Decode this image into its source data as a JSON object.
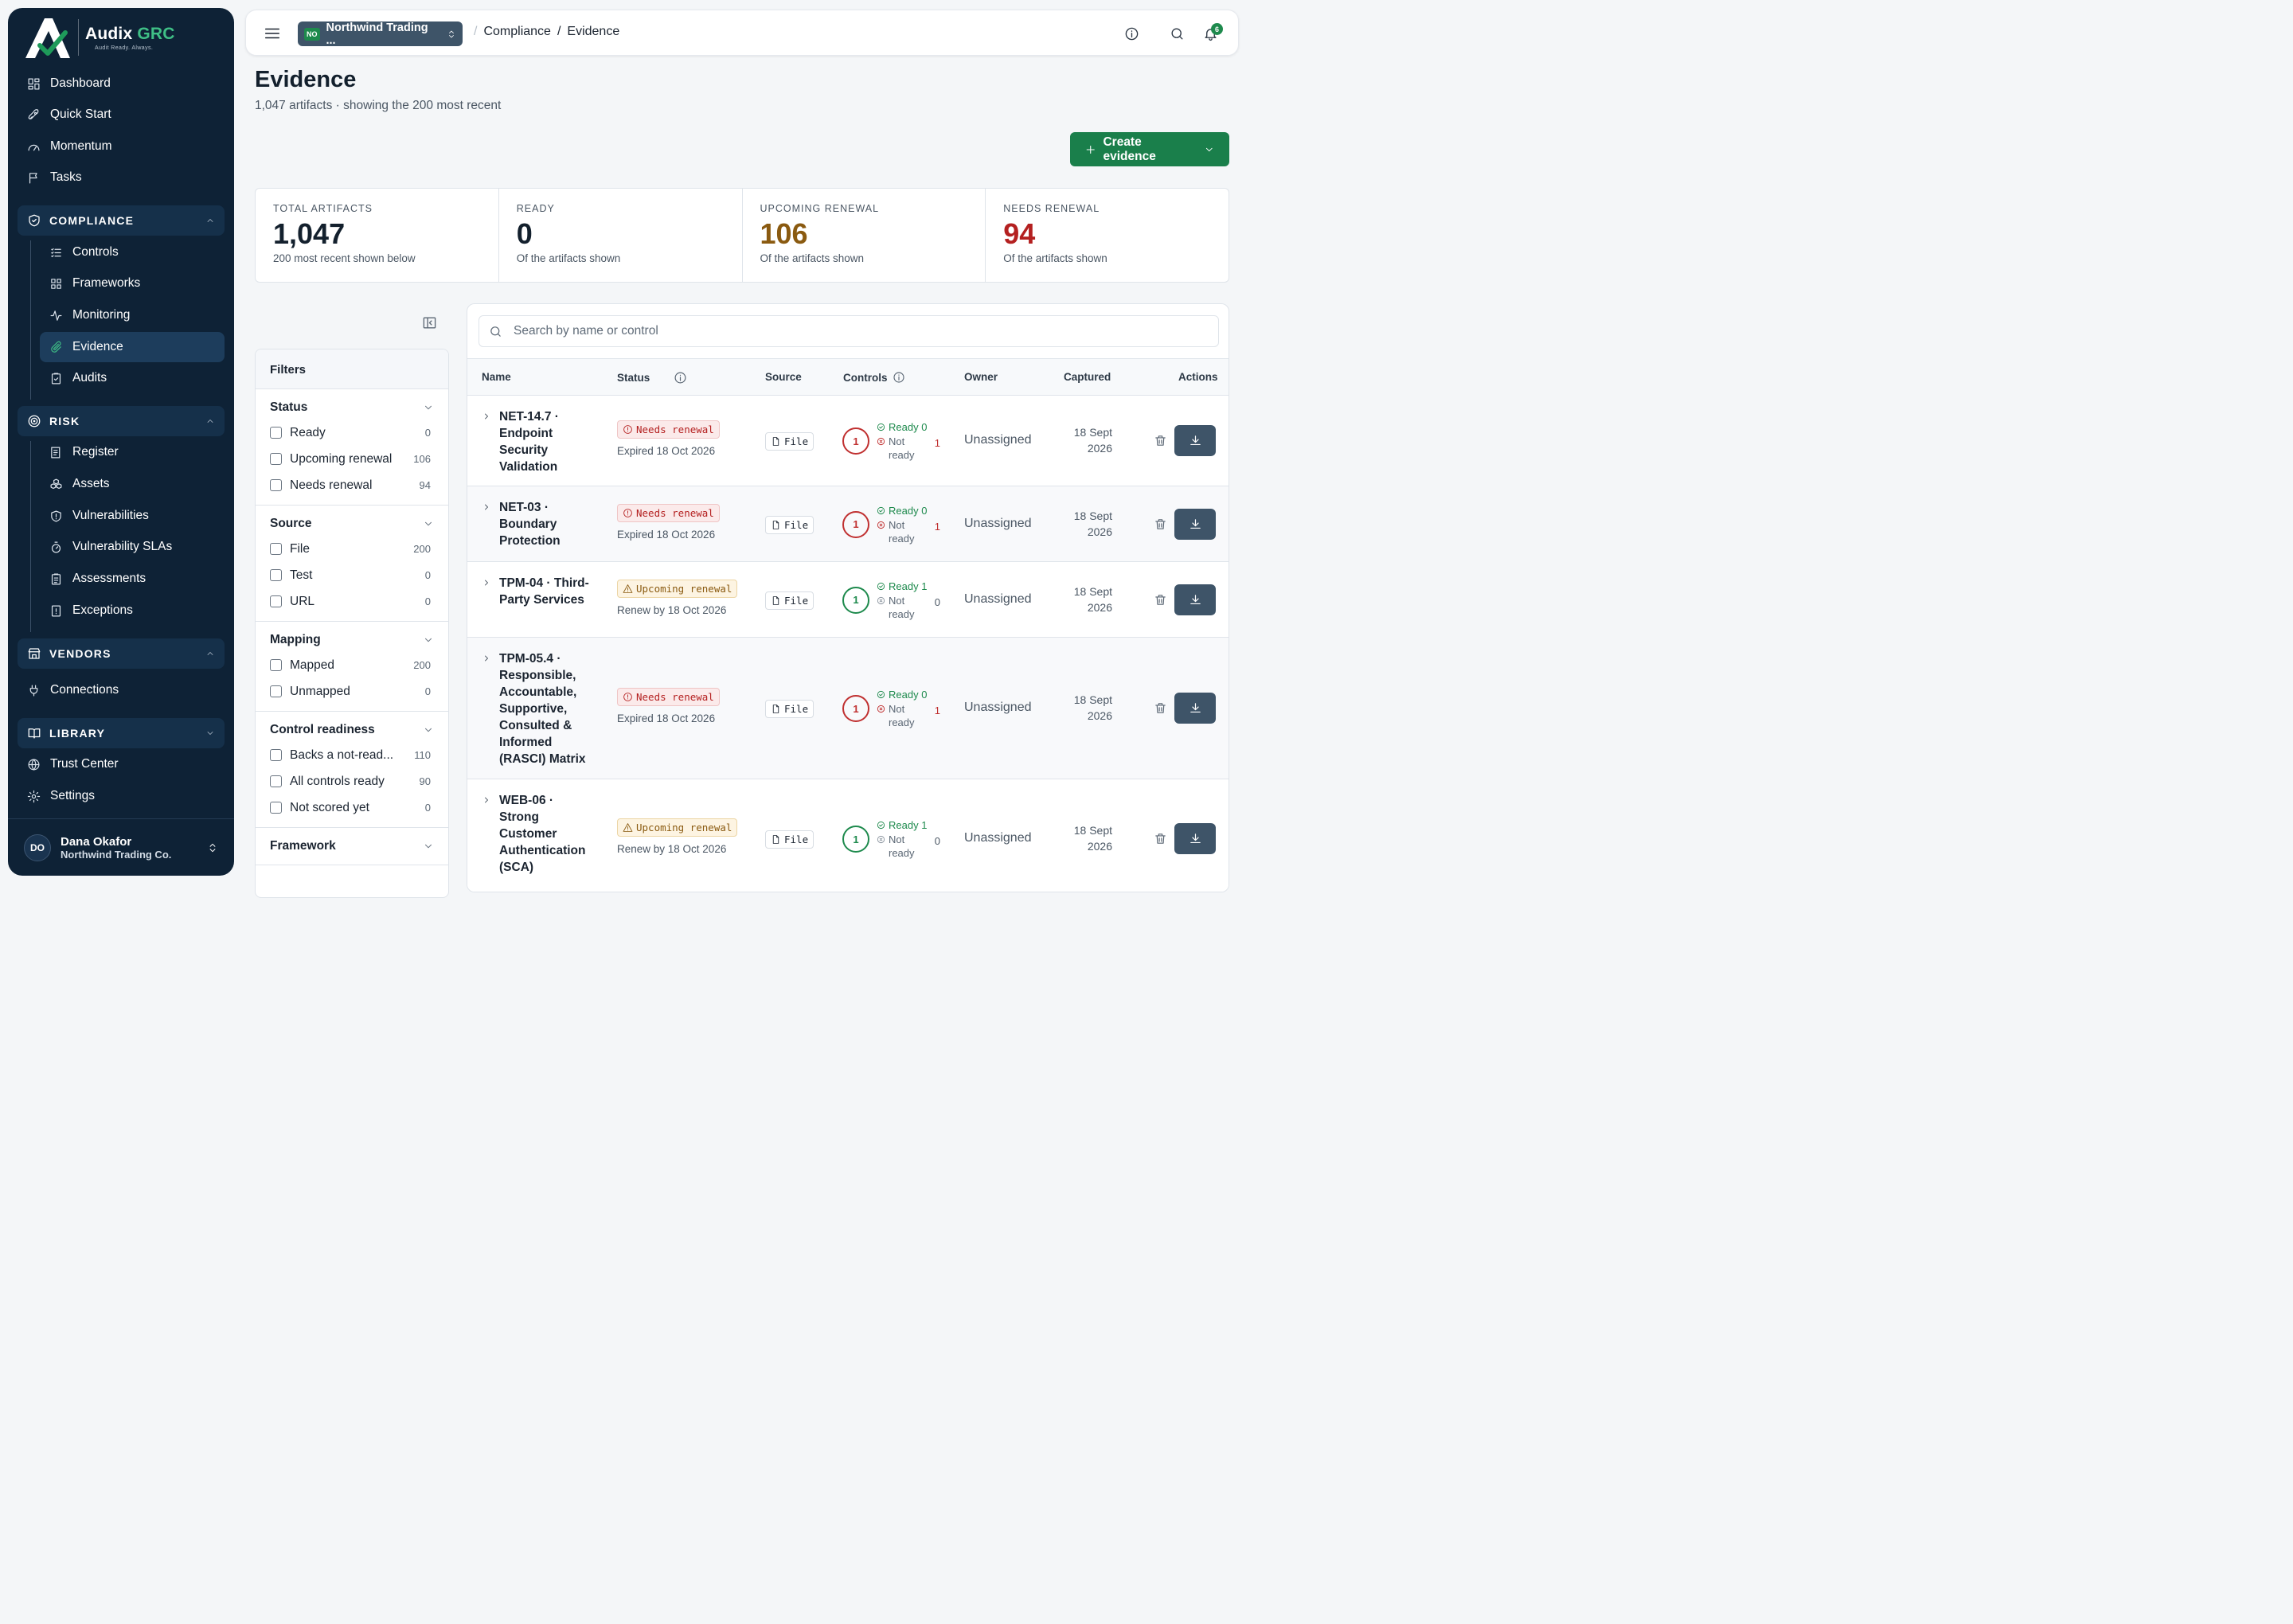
{
  "brand": {
    "name_main": "Audix",
    "name_accent": "GRC",
    "tagline": "Audit Ready. Always."
  },
  "nav": {
    "top": [
      {
        "label": "Dashboard",
        "icon": "dashboard-icon"
      },
      {
        "label": "Quick Start",
        "icon": "rocket-icon"
      },
      {
        "label": "Momentum",
        "icon": "gauge-icon"
      },
      {
        "label": "Tasks",
        "icon": "flag-icon"
      }
    ],
    "compliance": {
      "title": "COMPLIANCE",
      "items": [
        "Controls",
        "Frameworks",
        "Monitoring",
        "Evidence",
        "Audits"
      ],
      "active": "Evidence"
    },
    "risk": {
      "title": "RISK",
      "items": [
        "Register",
        "Assets",
        "Vulnerabilities",
        "Vulnerability SLAs",
        "Assessments",
        "Exceptions"
      ]
    },
    "vendors": {
      "title": "VENDORS",
      "items": [
        "Connections"
      ]
    },
    "library": {
      "title": "LIBRARY",
      "items": [
        "Trust Center",
        "Settings"
      ]
    }
  },
  "user": {
    "initials": "DO",
    "name": "Dana Okafor",
    "org": "Northwind Trading Co."
  },
  "topbar": {
    "tenant_badge": "NO",
    "tenant": "Northwind Trading ...",
    "breadcrumb": [
      "Compliance",
      "Evidence"
    ],
    "notifications": "6"
  },
  "page": {
    "title": "Evidence",
    "subtitle": "1,047 artifacts · showing the 200 most recent",
    "create_label": "Create evidence"
  },
  "stats": [
    {
      "label": "TOTAL ARTIFACTS",
      "value": "1,047",
      "note": "200 most recent shown below",
      "color": "#13202d"
    },
    {
      "label": "READY",
      "value": "0",
      "note": "Of the artifacts shown",
      "color": "#13202d"
    },
    {
      "label": "UPCOMING RENEWAL",
      "value": "106",
      "note": "Of the artifacts shown",
      "color": "#8a5a10"
    },
    {
      "label": "NEEDS RENEWAL",
      "value": "94",
      "note": "Of the artifacts shown",
      "color": "#b42020"
    }
  ],
  "filters": {
    "title": "Filters",
    "groups": [
      {
        "title": "Status",
        "options": [
          {
            "label": "Ready",
            "count": "0"
          },
          {
            "label": "Upcoming renewal",
            "count": "106"
          },
          {
            "label": "Needs renewal",
            "count": "94"
          }
        ]
      },
      {
        "title": "Source",
        "options": [
          {
            "label": "File",
            "count": "200"
          },
          {
            "label": "Test",
            "count": "0"
          },
          {
            "label": "URL",
            "count": "0"
          }
        ]
      },
      {
        "title": "Mapping",
        "options": [
          {
            "label": "Mapped",
            "count": "200"
          },
          {
            "label": "Unmapped",
            "count": "0"
          }
        ]
      },
      {
        "title": "Control readiness",
        "options": [
          {
            "label": "Backs a not-read...",
            "count": "110"
          },
          {
            "label": "All controls ready",
            "count": "90"
          },
          {
            "label": "Not scored yet",
            "count": "0"
          }
        ]
      },
      {
        "title": "Framework",
        "options": []
      }
    ]
  },
  "table": {
    "search_placeholder": "Search by name or control",
    "columns": [
      "Name",
      "Status",
      "Source",
      "Controls",
      "Owner",
      "Captured",
      "Actions"
    ],
    "rows": [
      {
        "name": "NET-14.7 · Endpoint Security Validation",
        "status": "Needs renewal",
        "status_type": "red",
        "status_note": "Expired 18 Oct 2026",
        "source": "File",
        "controls": "1",
        "ready": "Ready 0",
        "not_ready_label": "Not ready",
        "not_ready": "1",
        "owner": "Unassigned",
        "captured_1": "18 Sept",
        "captured_2": "2026"
      },
      {
        "name": "NET-03 · Boundary Protection",
        "status": "Needs renewal",
        "status_type": "red",
        "status_note": "Expired 18 Oct 2026",
        "source": "File",
        "controls": "1",
        "ready": "Ready 0",
        "not_ready_label": "Not ready",
        "not_ready": "1",
        "owner": "Unassigned",
        "captured_1": "18 Sept",
        "captured_2": "2026"
      },
      {
        "name": "TPM-04 · Third-Party Services",
        "status": "Upcoming renewal",
        "status_type": "amber",
        "status_note": "Renew by 18 Oct 2026",
        "source": "File",
        "controls": "1",
        "ready": "Ready 1",
        "not_ready_label": "Not ready",
        "not_ready": "0",
        "owner": "Unassigned",
        "captured_1": "18 Sept",
        "captured_2": "2026"
      },
      {
        "name": "TPM-05.4 · Responsible, Accountable, Supportive, Consulted & Informed (RASCI) Matrix",
        "status": "Needs renewal",
        "status_type": "red",
        "status_note": "Expired 18 Oct 2026",
        "source": "File",
        "controls": "1",
        "ready": "Ready 0",
        "not_ready_label": "Not ready",
        "not_ready": "1",
        "owner": "Unassigned",
        "captured_1": "18 Sept",
        "captured_2": "2026"
      },
      {
        "name": "WEB-06 · Strong Customer Authentication (SCA)",
        "status": "Upcoming renewal",
        "status_type": "amber",
        "status_note": "Renew by 18 Oct 2026",
        "source": "File",
        "controls": "1",
        "ready": "Ready 1",
        "not_ready_label": "Not ready",
        "not_ready": "0",
        "owner": "Unassigned",
        "captured_1": "18 Sept",
        "captured_2": "2026"
      }
    ]
  }
}
